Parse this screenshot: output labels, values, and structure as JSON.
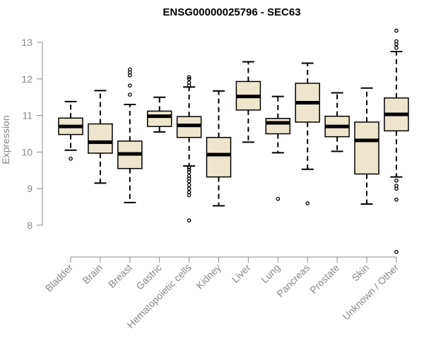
{
  "chart_data": {
    "type": "boxplot",
    "title": "ENSG00000025796 - SEC63",
    "xlabel": "",
    "ylabel": "Expression",
    "ylim": [
      7.2,
      13.3
    ],
    "yticks": [
      8,
      9,
      10,
      11,
      12,
      13
    ],
    "grid": false,
    "box_fill": "#ede6cd",
    "categories": [
      "Bladder",
      "Brain",
      "Breast",
      "Gastric",
      "Hematopoietic cells",
      "Kidney",
      "Liver",
      "Lung",
      "Pancreas",
      "Prostate",
      "Skin",
      "Unknown / Other"
    ],
    "series": [
      {
        "category": "Bladder",
        "whisker_low": 10.05,
        "q1": 10.48,
        "median": 10.7,
        "q3": 10.93,
        "whisker_high": 11.38,
        "outliers": [
          9.82
        ]
      },
      {
        "category": "Brain",
        "whisker_low": 9.15,
        "q1": 9.97,
        "median": 10.27,
        "q3": 10.77,
        "whisker_high": 11.68,
        "outliers": []
      },
      {
        "category": "Breast",
        "whisker_low": 8.62,
        "q1": 9.55,
        "median": 9.95,
        "q3": 10.3,
        "whisker_high": 11.3,
        "outliers": [
          11.57,
          11.82,
          12.1,
          12.18,
          12.26
        ]
      },
      {
        "category": "Gastric",
        "whisker_low": 10.55,
        "q1": 10.7,
        "median": 10.98,
        "q3": 11.12,
        "whisker_high": 11.5,
        "outliers": []
      },
      {
        "category": "Hematopoietic cells",
        "whisker_low": 9.62,
        "q1": 10.4,
        "median": 10.73,
        "q3": 10.97,
        "whisker_high": 11.78,
        "outliers": [
          8.13,
          8.82,
          8.9,
          9.0,
          9.1,
          9.2,
          9.28,
          9.35,
          9.45,
          9.52,
          9.58,
          11.82,
          11.9,
          12.0,
          12.05
        ]
      },
      {
        "category": "Kidney",
        "whisker_low": 8.53,
        "q1": 9.32,
        "median": 9.93,
        "q3": 10.4,
        "whisker_high": 11.67,
        "outliers": []
      },
      {
        "category": "Liver",
        "whisker_low": 10.27,
        "q1": 11.15,
        "median": 11.52,
        "q3": 11.93,
        "whisker_high": 12.47,
        "outliers": []
      },
      {
        "category": "Lung",
        "whisker_low": 9.98,
        "q1": 10.5,
        "median": 10.8,
        "q3": 10.92,
        "whisker_high": 11.52,
        "outliers": [
          8.72
        ]
      },
      {
        "category": "Pancreas",
        "whisker_low": 9.53,
        "q1": 10.82,
        "median": 11.35,
        "q3": 11.88,
        "whisker_high": 12.43,
        "outliers": [
          8.6
        ]
      },
      {
        "category": "Prostate",
        "whisker_low": 10.02,
        "q1": 10.42,
        "median": 10.7,
        "q3": 10.98,
        "whisker_high": 11.62,
        "outliers": []
      },
      {
        "category": "Skin",
        "whisker_low": 8.58,
        "q1": 9.4,
        "median": 10.32,
        "q3": 10.82,
        "whisker_high": 11.75,
        "outliers": []
      },
      {
        "category": "Unknown / Other",
        "whisker_low": 9.32,
        "q1": 10.58,
        "median": 11.03,
        "q3": 11.48,
        "whisker_high": 12.75,
        "outliers": [
          7.27,
          8.7,
          9.0,
          9.08,
          9.22,
          12.85,
          12.95,
          13.03,
          13.32
        ]
      }
    ]
  }
}
